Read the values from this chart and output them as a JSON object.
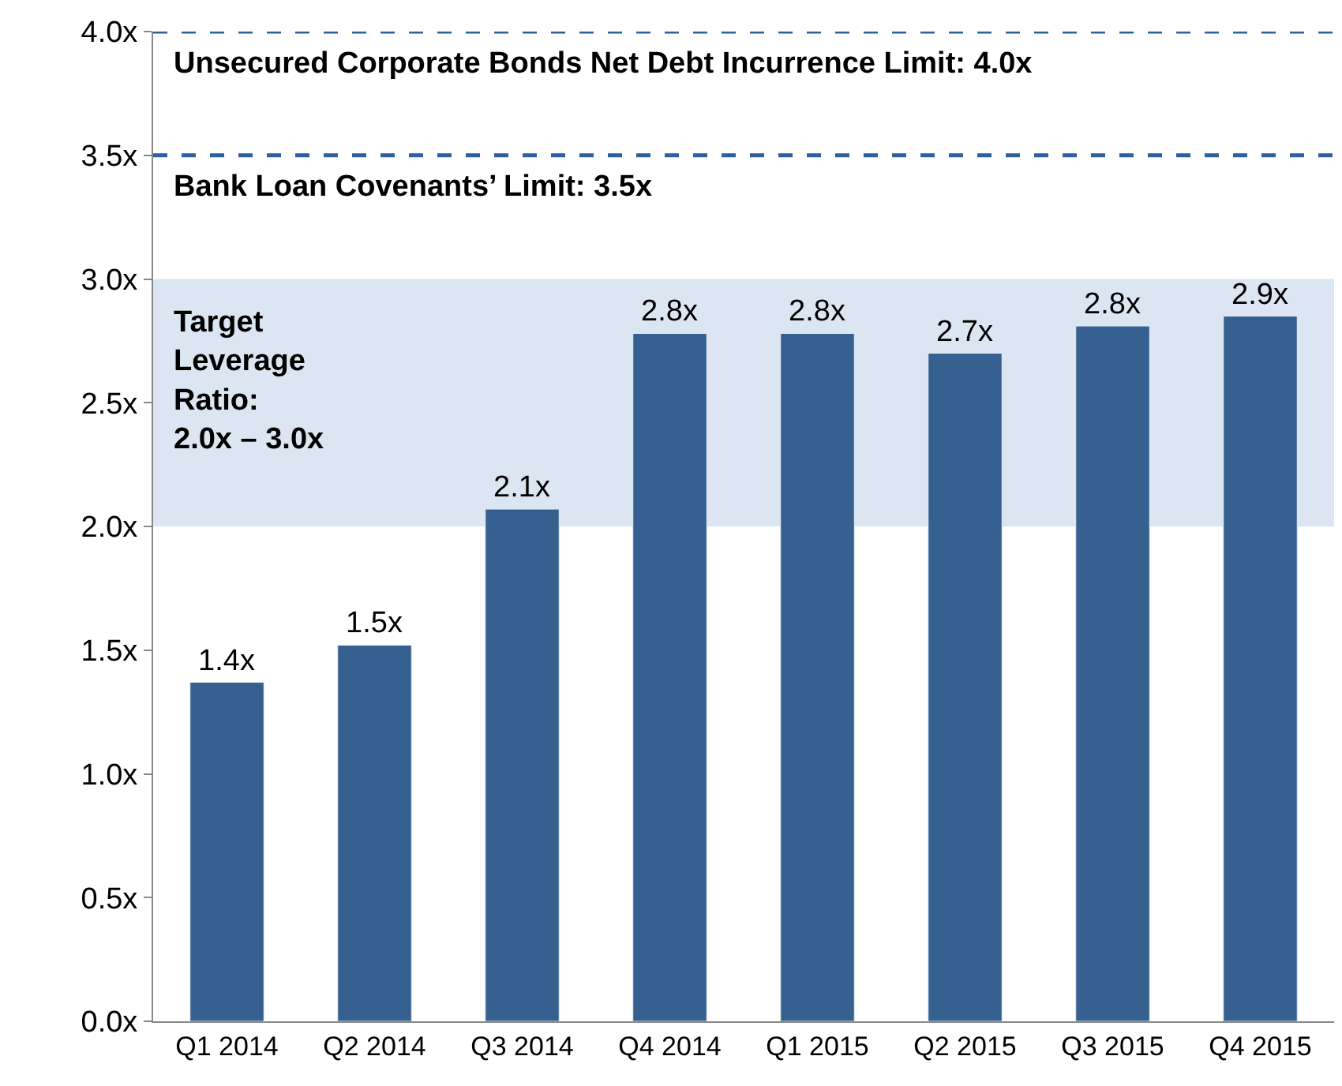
{
  "chart_data": {
    "type": "bar",
    "categories": [
      "Q1 2014",
      "Q2 2014",
      "Q3 2014",
      "Q4 2014",
      "Q1 2015",
      "Q2 2015",
      "Q3 2015",
      "Q4 2015"
    ],
    "values": [
      1.37,
      1.52,
      2.07,
      2.78,
      2.78,
      2.7,
      2.81,
      2.85
    ],
    "value_labels": [
      "1.4x",
      "1.5x",
      "2.1x",
      "2.8x",
      "2.8x",
      "2.7x",
      "2.8x",
      "2.9x"
    ],
    "color": "#35608f",
    "ylim": [
      0,
      4
    ],
    "yticks": [
      {
        "value": 0,
        "label": "0.0x"
      },
      {
        "value": 0.5,
        "label": "0.5x"
      },
      {
        "value": 1,
        "label": "1.0x"
      },
      {
        "value": 1.5,
        "label": "1.5x"
      },
      {
        "value": 2,
        "label": "2.0x"
      },
      {
        "value": 2.5,
        "label": "2.5x"
      },
      {
        "value": 3,
        "label": "3.0x"
      },
      {
        "value": 3.5,
        "label": "3.5x"
      },
      {
        "value": 4,
        "label": "4.0x"
      }
    ],
    "ref_lines": [
      {
        "axis": "y",
        "value": 4,
        "label": "Unsecured Corporate Bonds Net Debt Incurrence Limit: 4.0x",
        "color": "#2e5f9e",
        "line_style": "dashed"
      },
      {
        "axis": "y",
        "value": 3.5,
        "label": "Bank Loan Covenants’ Limit: 3.5x",
        "color": "#2e5f9e",
        "line_style": "dashed"
      }
    ],
    "bands": [
      {
        "axis": "y",
        "from": 2,
        "to": 3,
        "label": "Target Leverage Ratio: 2.0x – 3.0x",
        "color": "#dce6f2"
      }
    ],
    "grid": false,
    "legend": false
  }
}
